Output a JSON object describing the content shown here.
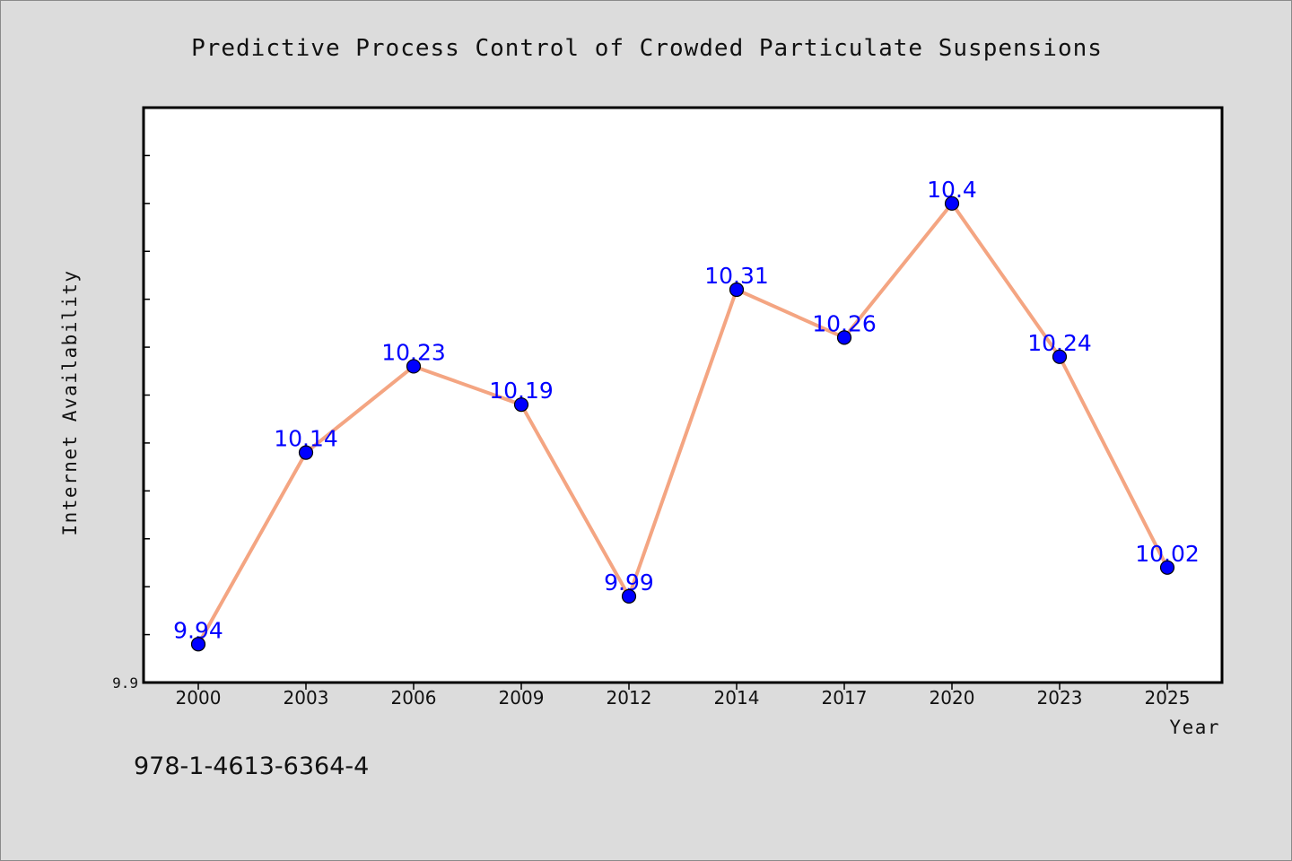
{
  "chart_data": {
    "type": "line",
    "title": "Predictive Process Control of Crowded Particulate Suspensions",
    "xlabel": "Year",
    "ylabel": "Internet Availability",
    "categories": [
      "2000",
      "2003",
      "2006",
      "2009",
      "2012",
      "2014",
      "2017",
      "2020",
      "2023",
      "2025"
    ],
    "series": [
      {
        "values": [
          9.94,
          10.14,
          10.23,
          10.19,
          9.99,
          10.31,
          10.26,
          10.4,
          10.24,
          10.02
        ],
        "data_labels": [
          "9.94",
          "10.14",
          "10.23",
          "10.19",
          "9.99",
          "10.31",
          "10.26",
          "10.4",
          "10.24",
          "10.02"
        ],
        "line_color": "#f4a582",
        "marker_color": "#0000ff"
      }
    ],
    "ylim": [
      9.9,
      10.5
    ],
    "y_tick_labels": [
      "9.9"
    ],
    "y_minor_tick_step": 0.05,
    "grid": false,
    "legend": "none"
  },
  "footnote": "978-1-4613-6364-4"
}
